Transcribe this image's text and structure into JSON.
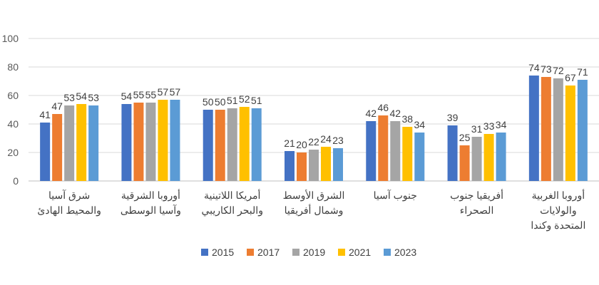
{
  "chart_data": {
    "type": "bar",
    "title": "",
    "xlabel": "",
    "ylabel": "",
    "ylim": [
      0,
      100
    ],
    "yticks": [
      0,
      20,
      40,
      60,
      80,
      100
    ],
    "grid": true,
    "legend_position": "bottom",
    "categories": [
      [
        "شرق آسيا",
        "والمحيط الهادئ"
      ],
      [
        "أوروبا الشرقية",
        "وآسيا الوسطى"
      ],
      [
        "أمريكا اللاتينية",
        "والبحر الكاريبي"
      ],
      [
        "الشرق الأوسط",
        "وشمال أفريقيا"
      ],
      [
        "جنوب آسيا"
      ],
      [
        "أفريقيا جنوب",
        "الصحراء"
      ],
      [
        "أوروبا الغربية",
        "والولايات",
        "المتحدة وكندا"
      ]
    ],
    "series": [
      {
        "name": "2015",
        "color": "#4472c4",
        "values": [
          41,
          54,
          50,
          21,
          42,
          39,
          74
        ]
      },
      {
        "name": "2017",
        "color": "#ed7d31",
        "values": [
          47,
          55,
          50,
          20,
          46,
          25,
          73
        ]
      },
      {
        "name": "2019",
        "color": "#a5a5a5",
        "values": [
          53,
          55,
          51,
          22,
          42,
          31,
          72
        ]
      },
      {
        "name": "2021",
        "color": "#ffc000",
        "values": [
          54,
          57,
          52,
          24,
          38,
          33,
          67
        ]
      },
      {
        "name": "2023",
        "color": "#5b9bd5",
        "values": [
          53,
          57,
          51,
          23,
          34,
          34,
          71
        ]
      }
    ]
  }
}
